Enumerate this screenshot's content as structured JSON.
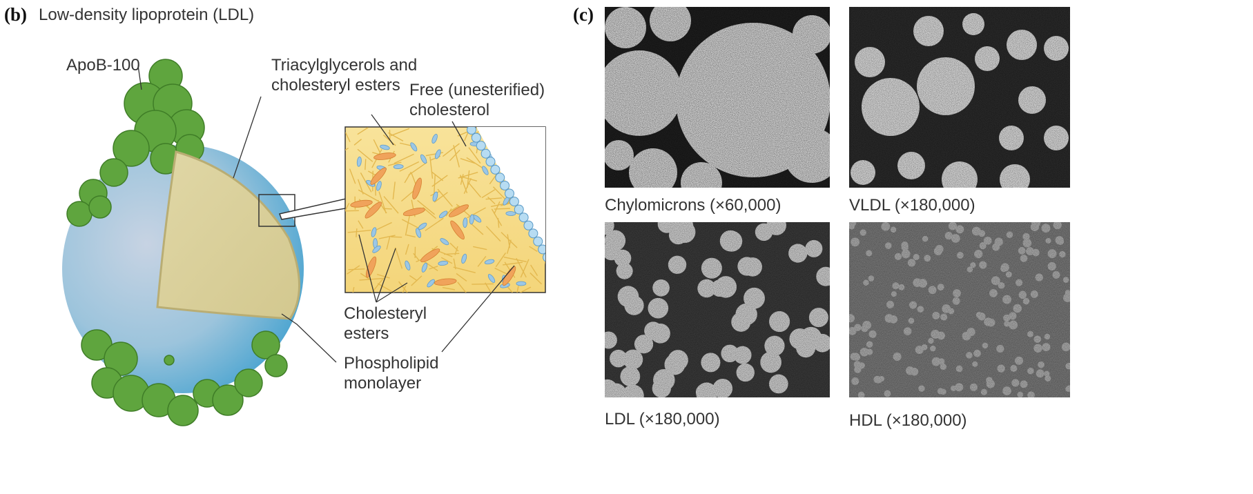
{
  "panel_b": {
    "letter": "(b)",
    "title": "Low-density lipoprotein (LDL)",
    "labels": {
      "apob": "ApoB-100",
      "triacylglycerols": [
        "Triacylglycerols and",
        "cholesteryl esters"
      ],
      "free_cholesterol": [
        "Free (unesterified)",
        "cholesterol"
      ],
      "cholesteryl_esters": [
        "Cholesteryl",
        "esters"
      ],
      "phospholipid": [
        "Phospholipid",
        "monolayer"
      ]
    }
  },
  "panel_c": {
    "letter": "(c)",
    "micrographs": [
      {
        "caption": "Chylomicrons (×60,000)"
      },
      {
        "caption": "VLDL (×180,000)"
      },
      {
        "caption": "LDL (×180,000)"
      },
      {
        "caption": "HDL (×180,000)"
      }
    ]
  }
}
